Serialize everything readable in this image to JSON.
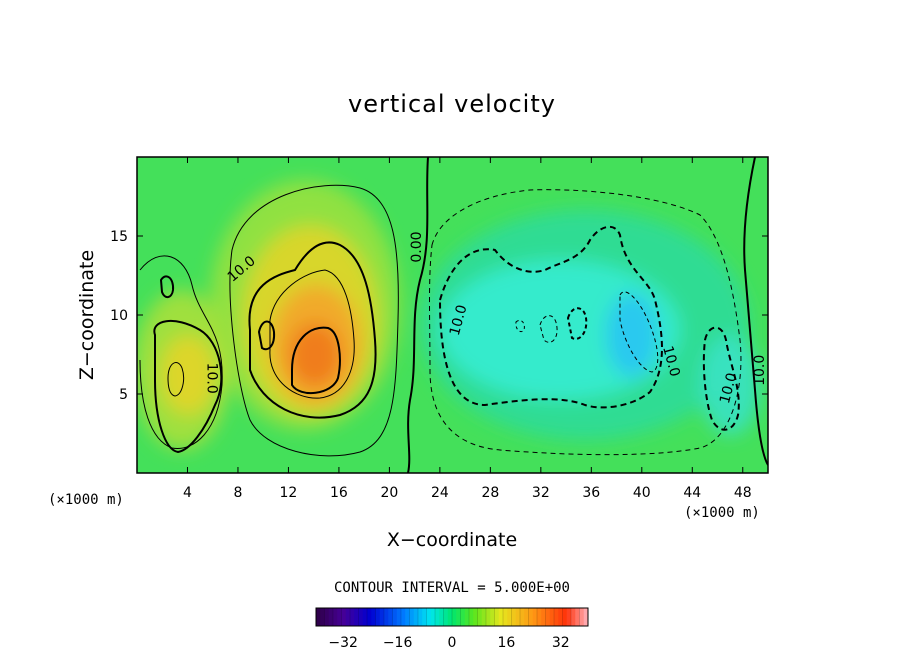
{
  "chart_data": {
    "type": "heatmap",
    "title": "vertical velocity",
    "xlabel": "X−coordinate",
    "ylabel": "Z−coordinate",
    "x_unit_left": "(×1000 m)",
    "x_unit_right": "(×1000 m)",
    "xlim": [
      0,
      50
    ],
    "ylim": [
      0,
      20
    ],
    "x_ticks": [
      4,
      8,
      12,
      16,
      20,
      24,
      28,
      32,
      36,
      40,
      44,
      48
    ],
    "x_tick_labels": [
      "4",
      "8",
      "12",
      "16",
      "20",
      "24",
      "28",
      "32",
      "36",
      "40",
      "44",
      "48"
    ],
    "y_ticks": [
      5,
      10,
      15
    ],
    "y_tick_labels": [
      "5",
      "10",
      "15"
    ],
    "contour_interval_label": "CONTOUR INTERVAL = 5.000E+00",
    "contour_interval": 5.0,
    "colorbar": {
      "range": [
        -40,
        40
      ],
      "ticks": [
        -32,
        -16,
        0,
        16,
        32
      ],
      "tick_labels": [
        "−32",
        "−16",
        "0",
        "16",
        "32"
      ]
    },
    "contour_labels": [
      {
        "text": "10.0",
        "x": 8.5,
        "y": 12.7,
        "rotate": -40
      },
      {
        "text": "0.00",
        "x": 22.5,
        "y": 14.3,
        "rotate": -90
      },
      {
        "text": "10.0",
        "x": 5.6,
        "y": 6.0,
        "rotate": 90
      },
      {
        "text": "10.0",
        "x": 25.8,
        "y": 9.6,
        "rotate": -75
      },
      {
        "text": "10.0",
        "x": 42.0,
        "y": 7.0,
        "rotate": 75
      },
      {
        "text": "10.0",
        "x": 47.2,
        "y": 5.3,
        "rotate": -75
      },
      {
        "text": "10.0",
        "x": 49.7,
        "y": 6.5,
        "rotate": -90
      }
    ],
    "features": [
      {
        "name": "updraft-main",
        "x": 14.0,
        "z": 7.0,
        "peak": 24
      },
      {
        "name": "updraft-left",
        "x": 3.5,
        "z": 6.0,
        "peak": 17
      },
      {
        "name": "downdraft-center",
        "x": 39.0,
        "z": 9.0,
        "peak": -18
      },
      {
        "name": "downdraft-mid",
        "x": 31.0,
        "z": 9.0,
        "peak": -15
      },
      {
        "name": "downdraft-right",
        "x": 46.0,
        "z": 5.0,
        "peak": -13
      }
    ],
    "legend": "bottom"
  }
}
